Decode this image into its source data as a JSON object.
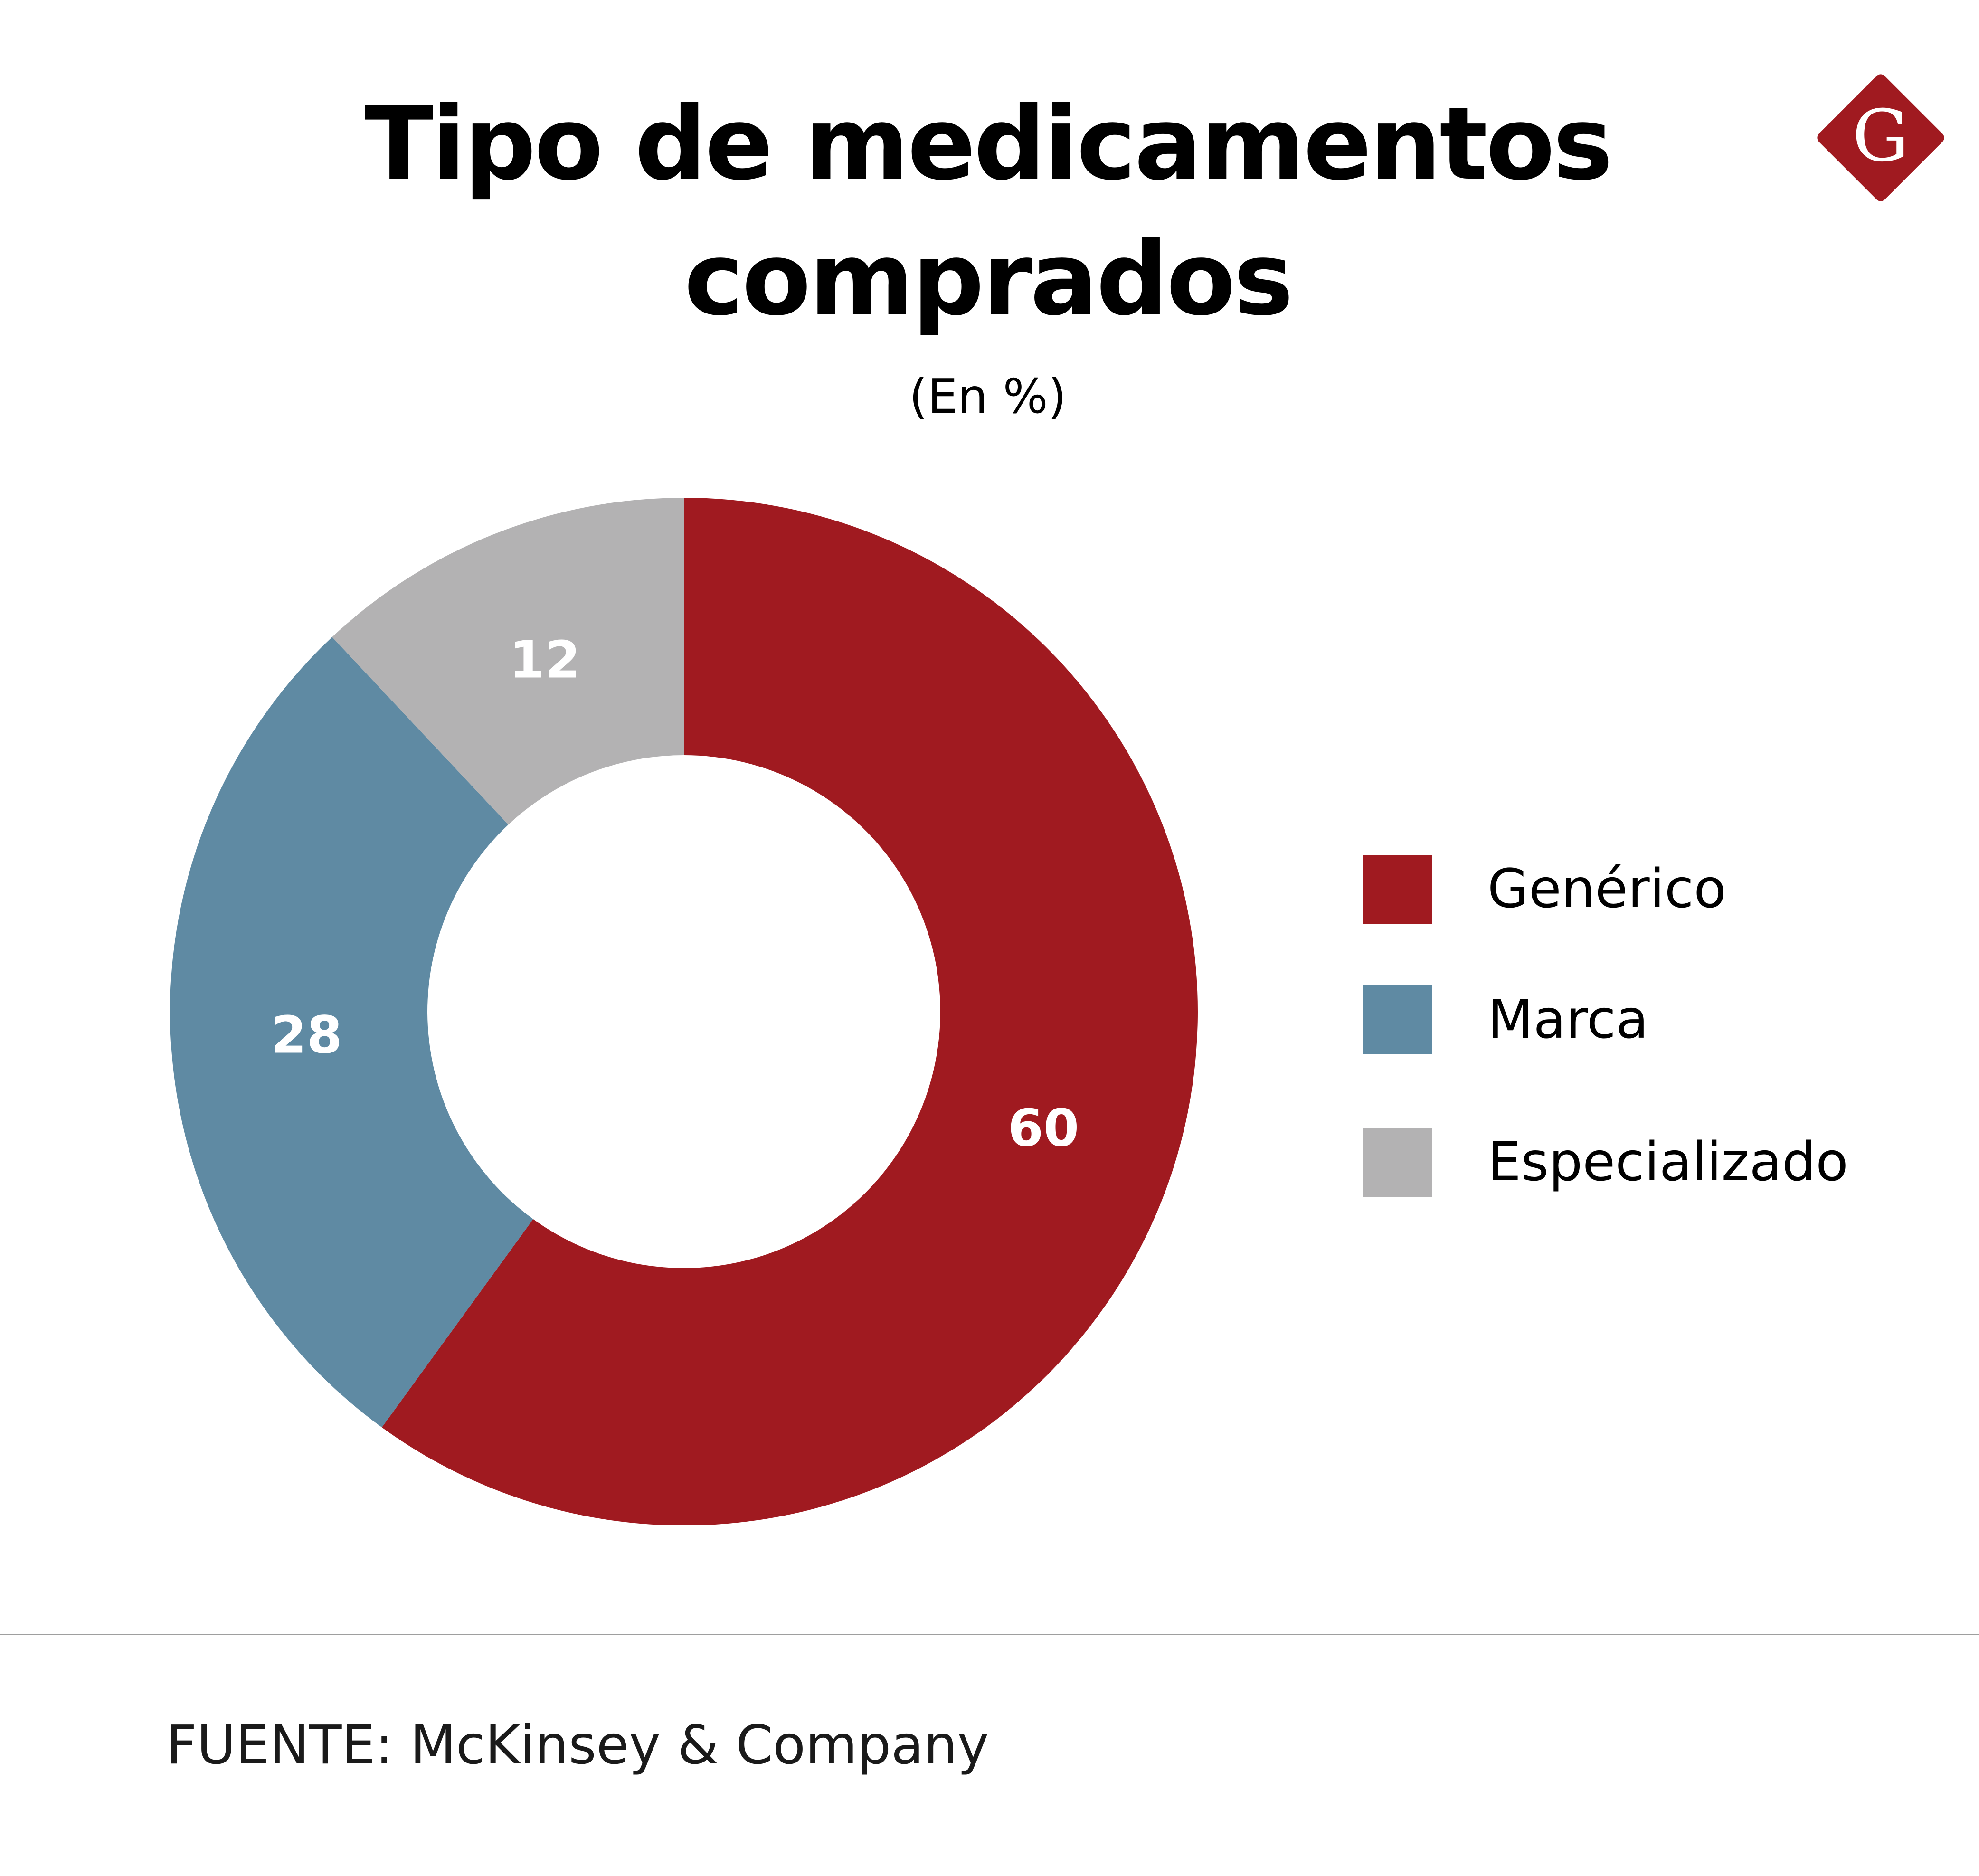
{
  "chart_data": {
    "type": "pie",
    "variant": "donut",
    "title_lines": [
      "Tipo de medicamentos",
      "comprados"
    ],
    "subtitle": "(En %)",
    "categories": [
      "Genérico",
      "Marca",
      "Especializado"
    ],
    "values": [
      60,
      28,
      12
    ],
    "colors": [
      "#a01a20",
      "#5f8aa3",
      "#b3b2b3"
    ],
    "data_labels": [
      "60",
      "28",
      "12"
    ],
    "legend_position": "right",
    "start_angle": "12 o'clock",
    "direction": "clockwise"
  },
  "legend": {
    "items": [
      {
        "label": "Genérico",
        "color": "#a01a20"
      },
      {
        "label": "Marca",
        "color": "#5f8aa3"
      },
      {
        "label": "Especializado",
        "color": "#b3b2b3"
      }
    ]
  },
  "logo": {
    "letter": "G",
    "color": "#a01a20"
  },
  "footer": {
    "source": "FUENTE: McKinsey & Company"
  }
}
